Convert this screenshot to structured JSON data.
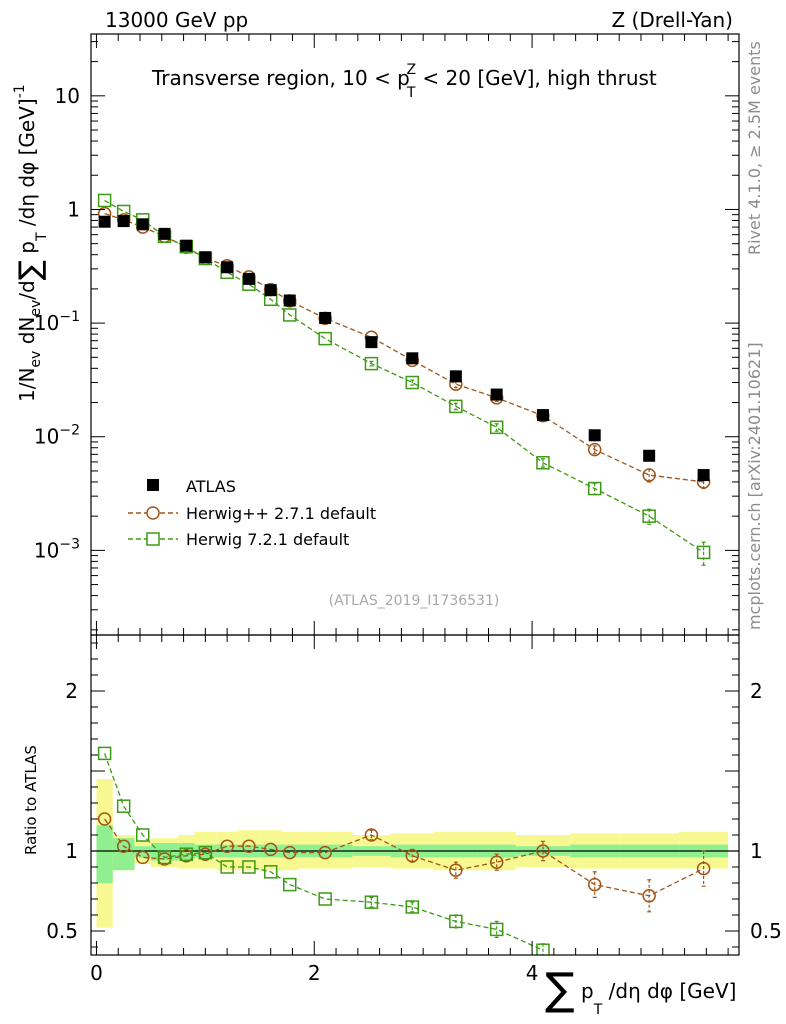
{
  "header": {
    "energy_label": "13000 GeV pp",
    "process_label": "Z (Drell-Yan)"
  },
  "side_labels": {
    "rivet": "Rivet 4.1.0, ≥ 2.5M events",
    "mcplots": "mcplots.cern.ch [arXiv:2401.10621]"
  },
  "chart_data": [
    {
      "type": "scatter",
      "panel": "main",
      "title": "Transverse region, 10 < p_T^Z < 20 [GeV], high thrust",
      "title_parts": {
        "pre": "Transverse region, 10 < p",
        "sup": "Z",
        "sub": "T",
        "post": " < 20 [GeV], high thrust"
      },
      "ylabel": "1/N_ev dN_ev/d∑p_T/dη dφ [GeV]^-1",
      "ylabel_parts": {
        "a": "1/N",
        "a_sub": "ev",
        "b": " dN",
        "b_sub": "ev",
        "c": "/d",
        "sum": "∑",
        "d": " p",
        "d_sub": "T",
        "e": " /dη dφ  [GeV]",
        "e_sup": "-1"
      },
      "xlim": [
        -0.05,
        5.9
      ],
      "ylim": [
        0.00018,
        35
      ],
      "yscale": "log",
      "y_ticks": [
        {
          "v": 10,
          "base": "10",
          "exp": ""
        },
        {
          "v": 1,
          "base": "1",
          "exp": ""
        },
        {
          "v": 0.1,
          "base": "10",
          "exp": "−1"
        },
        {
          "v": 0.01,
          "base": "10",
          "exp": "−2"
        },
        {
          "v": 0.001,
          "base": "10",
          "exp": "−3"
        }
      ],
      "watermark": "(ATLAS_2019_I1736531)",
      "legend_position": "bottom-left",
      "series": [
        {
          "name": "ATLAS",
          "style": "data",
          "color": "#000000",
          "x": [
            0.075,
            0.25,
            0.425,
            0.625,
            0.825,
            1.0,
            1.2,
            1.4,
            1.6,
            1.775,
            2.1,
            2.525,
            2.9,
            3.3,
            3.675,
            4.1,
            4.575,
            5.075,
            5.575
          ],
          "y": [
            0.78,
            0.79,
            0.74,
            0.61,
            0.48,
            0.38,
            0.31,
            0.245,
            0.195,
            0.158,
            0.111,
            0.068,
            0.049,
            0.034,
            0.0235,
            0.0155,
            0.0103,
            0.0068,
            0.0046
          ]
        },
        {
          "name": "Herwig++ 2.7.1 default",
          "style": "circle",
          "color": "#a0561a",
          "x": [
            0.075,
            0.25,
            0.425,
            0.625,
            0.825,
            1.0,
            1.2,
            1.4,
            1.6,
            1.775,
            2.1,
            2.525,
            2.9,
            3.3,
            3.675,
            4.1,
            4.575,
            5.075,
            5.575
          ],
          "y": [
            0.92,
            0.81,
            0.7,
            0.58,
            0.465,
            0.37,
            0.32,
            0.255,
            0.197,
            0.157,
            0.11,
            0.075,
            0.047,
            0.029,
            0.022,
            0.0153,
            0.0077,
            0.0046,
            0.004
          ],
          "yerr": [
            0,
            0,
            0,
            0,
            0,
            0,
            0,
            0,
            0,
            0,
            0,
            0,
            0,
            0.002,
            0.0015,
            0.001,
            0.0006,
            0.0006,
            0.0005
          ]
        },
        {
          "name": "Herwig 7.2.1 default",
          "style": "square",
          "color": "#3d9a13",
          "x": [
            0.075,
            0.25,
            0.425,
            0.625,
            0.825,
            1.0,
            1.2,
            1.4,
            1.6,
            1.775,
            2.1,
            2.525,
            2.9,
            3.3,
            3.675,
            4.1,
            4.575,
            5.075,
            5.575
          ],
          "y": [
            1.2,
            0.96,
            0.81,
            0.58,
            0.47,
            0.37,
            0.28,
            0.22,
            0.162,
            0.118,
            0.073,
            0.044,
            0.03,
            0.0185,
            0.0121,
            0.0059,
            0.0035,
            0.002,
            0.00096
          ],
          "yerr": [
            0,
            0,
            0,
            0,
            0,
            0,
            0,
            0,
            0,
            0,
            0,
            0.002,
            0.0015,
            0.0012,
            0.0009,
            0.0005,
            0.0004,
            0.0003,
            0.00022
          ]
        }
      ]
    },
    {
      "type": "scatter",
      "panel": "ratio",
      "ylabel": "Ratio to ATLAS",
      "xlabel": "∑ p_T /dη dφ [GeV]",
      "xlabel_parts": {
        "sum": "∑",
        "p": " p",
        "p_sub": "T",
        "rest": " /dη dφ [GeV]"
      },
      "xlim": [
        -0.05,
        5.9
      ],
      "ylim": [
        0.35,
        2.35
      ],
      "x_ticks": [
        "0",
        "2",
        "4"
      ],
      "y_ticks": [
        "0.5",
        "1",
        "2"
      ],
      "reference_line": 1,
      "bands": {
        "bin_edges": [
          0.0,
          0.15,
          0.35,
          0.5,
          0.75,
          0.9,
          1.1,
          1.3,
          1.5,
          1.7,
          1.85,
          2.35,
          2.7,
          3.1,
          3.5,
          3.85,
          4.35,
          4.8,
          5.35,
          5.8
        ],
        "stat_lo": [
          0.8,
          0.88,
          0.96,
          0.94,
          0.95,
          0.96,
          0.96,
          0.96,
          0.96,
          0.96,
          0.96,
          0.97,
          0.96,
          0.96,
          0.96,
          0.97,
          0.96,
          0.96,
          0.96
        ],
        "stat_hi": [
          1.16,
          1.08,
          1.03,
          1.05,
          1.05,
          1.04,
          1.04,
          1.04,
          1.04,
          1.04,
          1.04,
          1.03,
          1.04,
          1.04,
          1.04,
          1.03,
          1.04,
          1.04,
          1.04
        ],
        "total_lo": [
          0.52,
          0.88,
          0.92,
          0.9,
          0.89,
          0.89,
          0.88,
          0.88,
          0.88,
          0.88,
          0.89,
          0.9,
          0.89,
          0.88,
          0.88,
          0.9,
          0.89,
          0.89,
          0.89
        ],
        "total_hi": [
          1.45,
          1.1,
          1.06,
          1.08,
          1.1,
          1.12,
          1.12,
          1.13,
          1.13,
          1.12,
          1.12,
          1.1,
          1.11,
          1.12,
          1.12,
          1.1,
          1.11,
          1.11,
          1.12
        ],
        "stat_color": "#90f090",
        "total_color": "#f8f890"
      },
      "series": [
        {
          "name": "Herwig++ 2.7.1 default",
          "style": "circle",
          "color": "#a0561a",
          "x": [
            0.075,
            0.25,
            0.425,
            0.625,
            0.825,
            1.0,
            1.2,
            1.4,
            1.6,
            1.775,
            2.1,
            2.525,
            2.9,
            3.3,
            3.675,
            4.1,
            4.575,
            5.075,
            5.575
          ],
          "y": [
            1.2,
            1.03,
            0.96,
            0.95,
            0.97,
            0.98,
            1.03,
            1.03,
            1.01,
            0.99,
            0.99,
            1.1,
            0.97,
            0.88,
            0.93,
            1.0,
            0.79,
            0.72,
            0.89
          ],
          "yerr": [
            0,
            0,
            0,
            0,
            0,
            0,
            0,
            0,
            0,
            0,
            0,
            0.03,
            0.04,
            0.05,
            0.05,
            0.06,
            0.08,
            0.1,
            0.11
          ]
        },
        {
          "name": "Herwig 7.2.1 default",
          "style": "square",
          "color": "#3d9a13",
          "x": [
            0.075,
            0.25,
            0.425,
            0.625,
            0.825,
            1.0,
            1.2,
            1.4,
            1.6,
            1.775,
            2.1,
            2.525,
            2.9,
            3.3,
            3.675,
            4.1
          ],
          "y": [
            1.61,
            1.28,
            1.1,
            0.96,
            0.98,
            0.99,
            0.9,
            0.9,
            0.87,
            0.79,
            0.7,
            0.68,
            0.65,
            0.56,
            0.51,
            0.38
          ],
          "yerr": [
            0,
            0,
            0,
            0,
            0,
            0,
            0,
            0,
            0,
            0,
            0,
            0.03,
            0.03,
            0.04,
            0.05,
            0.04
          ]
        }
      ]
    }
  ]
}
